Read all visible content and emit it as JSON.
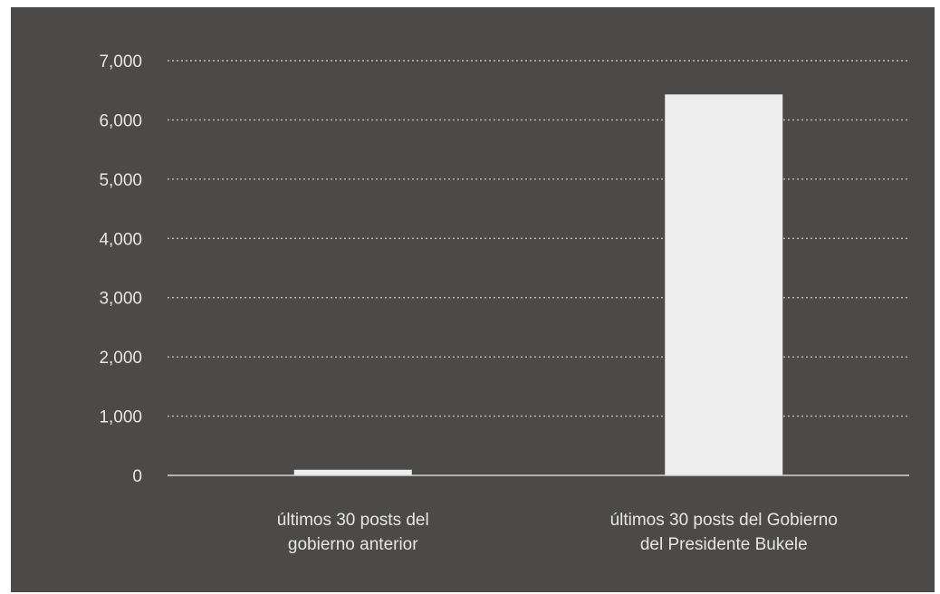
{
  "colors": {
    "background": "#4b4a49",
    "bar": "#eeeeee",
    "grid": "#bdbdbd",
    "text": "#e6e6e6"
  },
  "chart_data": {
    "type": "bar",
    "title": "",
    "xlabel": "",
    "ylabel": "",
    "categories": [
      [
        "últimos 30 posts del",
        "gobierno anterior"
      ],
      [
        "últimos 30 posts del Gobierno",
        "del Presidente Bukele"
      ]
    ],
    "values": [
      95,
      6430
    ],
    "ylim": [
      0,
      7000
    ],
    "yticks": [
      0,
      1000,
      2000,
      3000,
      4000,
      5000,
      6000,
      7000
    ],
    "ytick_labels": [
      "0",
      "1,000",
      "2,000",
      "3,000",
      "4,000",
      "5,000",
      "6,000",
      "7,000"
    ],
    "grid": true,
    "grid_style": "dotted",
    "legend": "none"
  }
}
